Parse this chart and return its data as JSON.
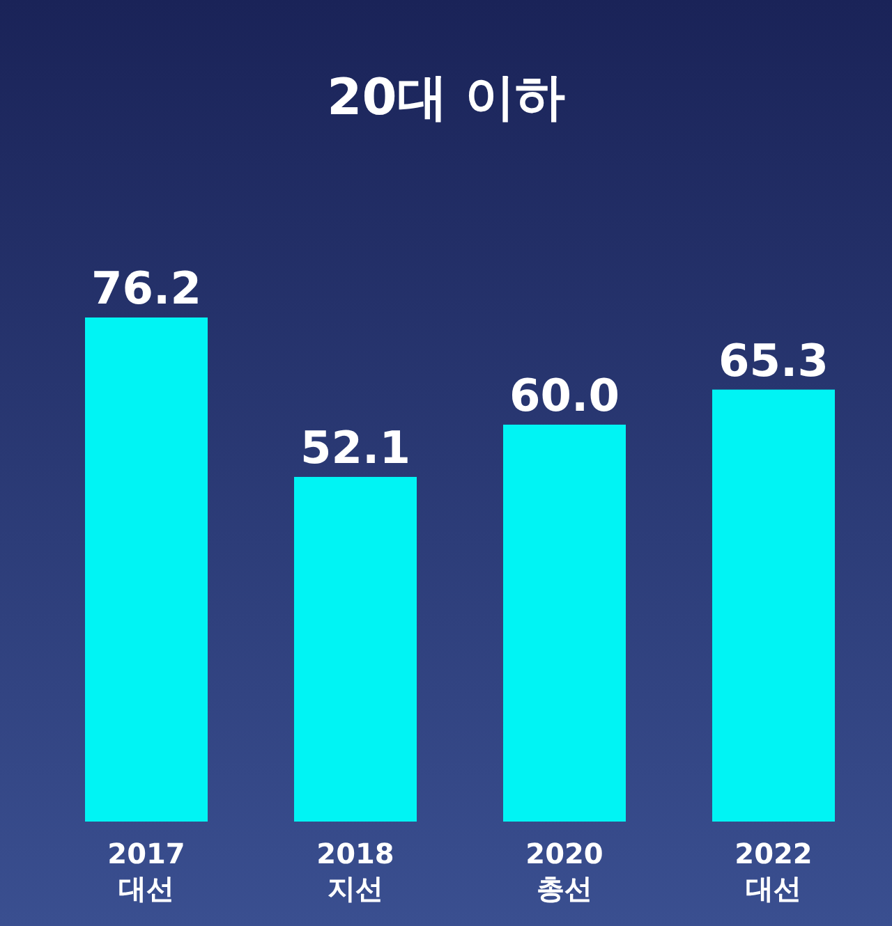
{
  "chart_data": {
    "type": "bar",
    "title": "20대 이하",
    "categories": [
      "2017\n대선",
      "2018\n지선",
      "2020\n총선",
      "2022\n대선"
    ],
    "values": [
      76.2,
      52.1,
      60.0,
      65.3
    ],
    "color": "#00f4f4",
    "data_labels": true,
    "value_labels": [
      "76.2",
      "52.1",
      "60.0",
      "65.3"
    ]
  }
}
